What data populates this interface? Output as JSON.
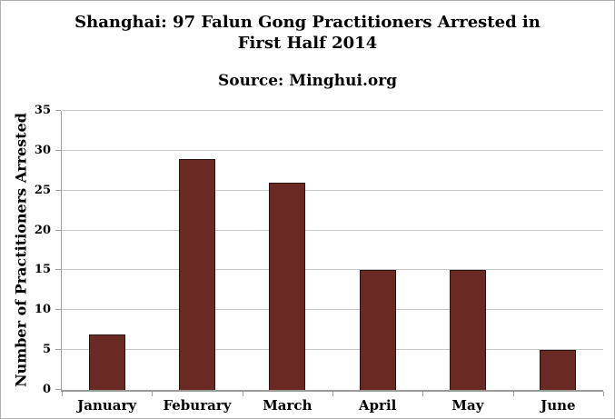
{
  "page": {
    "background": "#ffffff",
    "border_color": "#b0b0b0"
  },
  "header": {
    "title_line1": "Shanghai: 97 Falun Gong Practitioners Arrested in",
    "title_line2": "First Half 2014",
    "source": "Source: Minghui.org"
  },
  "chart_data": {
    "type": "bar",
    "title": "Shanghai: 97 Falun Gong Practitioners Arrested in First Half 2014",
    "subtitle": "Source: Minghui.org",
    "categories": [
      "January",
      "Feburary",
      "March",
      "April",
      "May",
      "June"
    ],
    "values": [
      7,
      29,
      26,
      15,
      15,
      5
    ],
    "total_arrests": 97,
    "xlabel": "",
    "ylabel": "Number of Practitioners Arrested",
    "ylim": [
      0,
      35
    ],
    "yticks": [
      0,
      5,
      10,
      15,
      20,
      25,
      30,
      35
    ],
    "grid": "horizontal",
    "legend": "none",
    "bar_color": "#6b2923",
    "bar_border_color": "#2a1210",
    "gridline_color": "#c6c6c6",
    "axis_color": "#9c9c9c",
    "text_color": "#000000"
  }
}
